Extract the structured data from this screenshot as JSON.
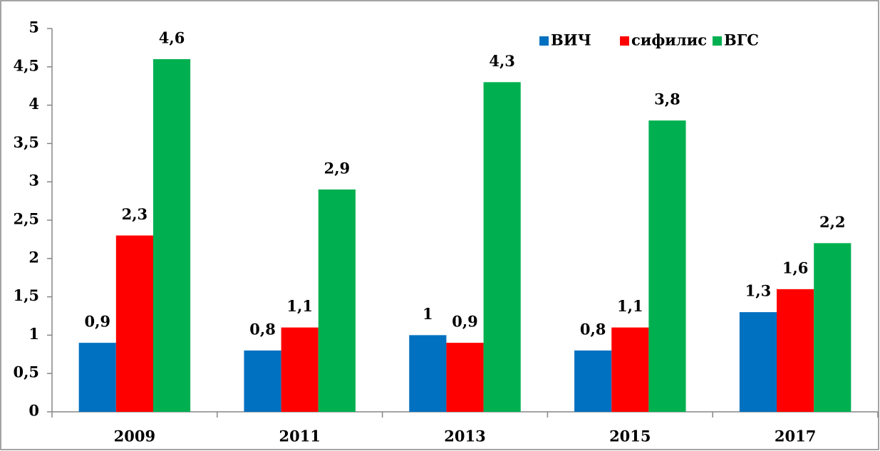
{
  "chart_data": {
    "type": "bar",
    "categories": [
      "2009",
      "2011",
      "2013",
      "2015",
      "2017"
    ],
    "series": [
      {
        "name": "ВИЧ",
        "color": "#0070c0",
        "values": [
          0.9,
          0.8,
          1,
          0.8,
          1.3
        ],
        "value_labels": [
          "0,9",
          "0,8",
          "1",
          "0,8",
          "1,3"
        ]
      },
      {
        "name": "сифилис",
        "color": "#ff0000",
        "values": [
          2.3,
          1.1,
          0.9,
          1.1,
          1.6
        ],
        "value_labels": [
          "2,3",
          "1,1",
          "0,9",
          "1,1",
          "1,6"
        ]
      },
      {
        "name": "ВГС",
        "color": "#00b050",
        "values": [
          4.6,
          2.9,
          4.3,
          3.8,
          2.2
        ],
        "value_labels": [
          "4,6",
          "2,9",
          "4,3",
          "3,8",
          "2,2"
        ]
      }
    ],
    "ylim": [
      0,
      5
    ],
    "yticks": [
      0,
      {
        "value": 0.5,
        "label": "0,5"
      },
      1,
      {
        "value": 1.5,
        "label": "1,5"
      },
      2,
      {
        "value": 2.5,
        "label": "2,5"
      },
      3,
      {
        "value": 3.5,
        "label": "3,5"
      },
      4,
      {
        "value": 4.5,
        "label": "4,5"
      },
      5
    ],
    "grid": false,
    "legend": "top-right"
  }
}
